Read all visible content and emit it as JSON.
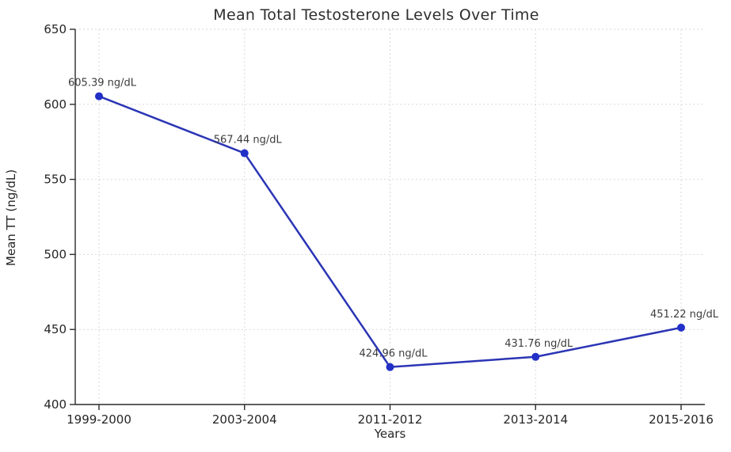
{
  "chart_data": {
    "type": "line",
    "title": "Mean Total Testosterone Levels Over Time",
    "xlabel": "Years",
    "ylabel": "Mean TT (ng/dL)",
    "categories": [
      "1999-2000",
      "2003-2004",
      "2011-2012",
      "2013-2014",
      "2015-2016"
    ],
    "values": [
      605.39,
      567.44,
      424.96,
      431.76,
      451.22
    ],
    "point_labels": [
      "605.39 ng/dL",
      "567.44 ng/dL",
      "424.96 ng/dL",
      "431.76 ng/dL",
      "451.22 ng/dL"
    ],
    "unit": "ng/dL",
    "ylim": [
      400,
      650
    ],
    "yticks": [
      400,
      450,
      500,
      550,
      600,
      650
    ],
    "grid": true,
    "legend_position": "none",
    "colors": {
      "line": "#2b35b5",
      "marker": "#2230c8",
      "grid": "#d9d9d9",
      "axis": "#2a2a2a",
      "tick_text": "#262626",
      "annotation": "#3c3c3c",
      "title": "#2e2e2e",
      "background": "#ffffff"
    }
  }
}
